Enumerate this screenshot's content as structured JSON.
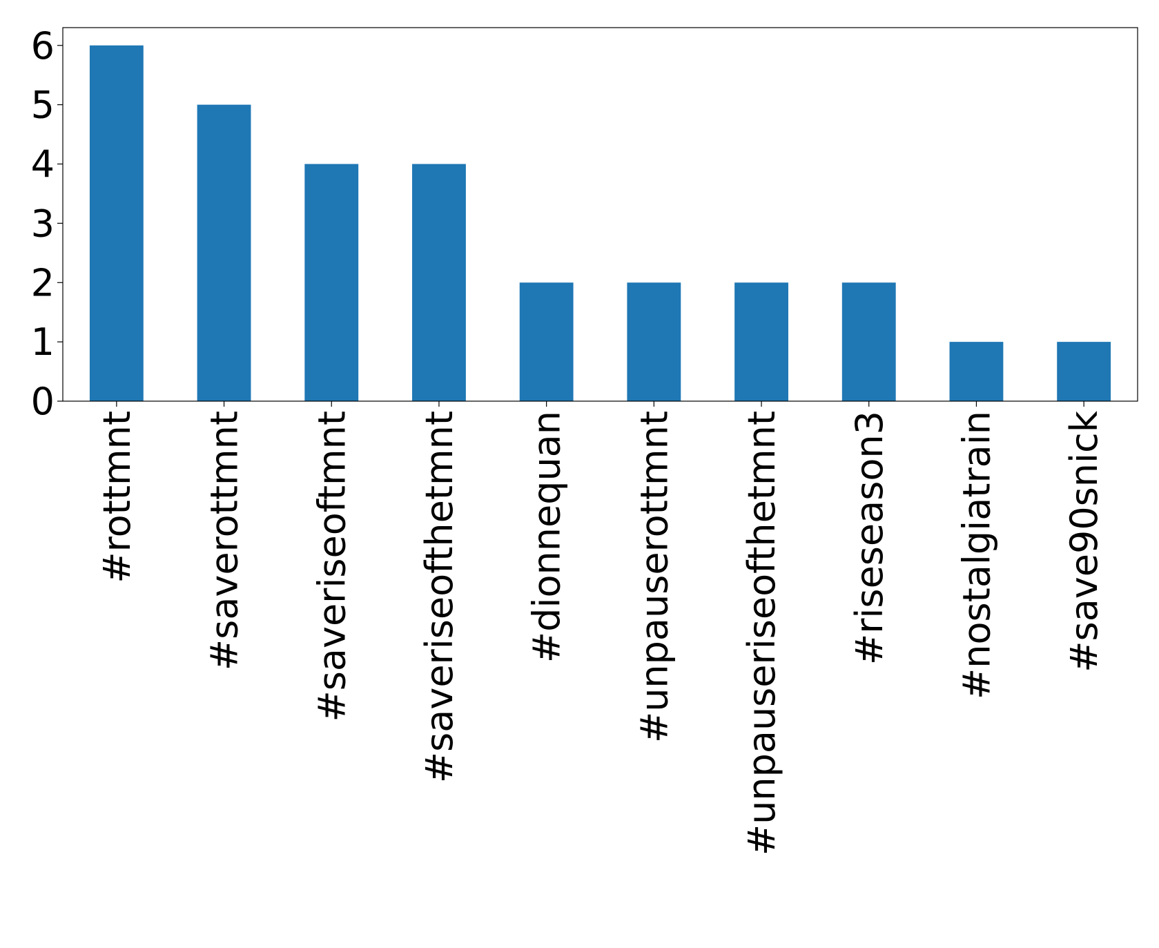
{
  "chart_data": {
    "type": "bar",
    "categories": [
      "#rottmnt",
      "#saverottmnt",
      "#saveriseoftmnt",
      "#saveriseofthetmnt",
      "#dionnequan",
      "#unpauserottmnt",
      "#unpauseriseofthetmnt",
      "#riseseason3",
      "#nostalgiatrain",
      "#save90snick"
    ],
    "values": [
      6,
      5,
      4,
      4,
      2,
      2,
      2,
      2,
      1,
      1
    ],
    "color": "#1f77b4",
    "ylim": [
      0,
      6.3
    ],
    "yticks": [
      0,
      1,
      2,
      3,
      4,
      5,
      6
    ],
    "grid": false
  }
}
